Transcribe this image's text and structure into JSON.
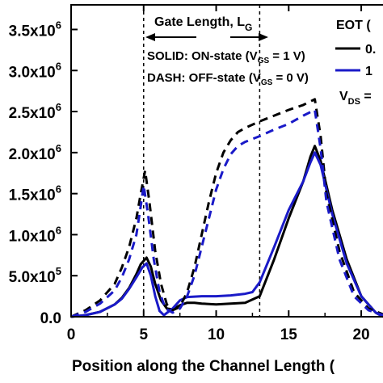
{
  "chart_data": {
    "type": "line",
    "xlabel": "Position along the Channel Length (",
    "ylabel": "",
    "xlim": [
      0,
      21.5
    ],
    "ylim": [
      0,
      3800000
    ],
    "x_ticks": [
      0,
      5,
      10,
      15,
      20
    ],
    "x_tick_labels": [
      "0",
      "5",
      "10",
      "15",
      "20"
    ],
    "y_ticks": [
      0,
      500000,
      1000000,
      1500000,
      2000000,
      2500000,
      3000000,
      3500000
    ],
    "y_tick_labels": [
      {
        "mantissa": "0.0",
        "exp": ""
      },
      {
        "mantissa": "5.0x10",
        "exp": "5"
      },
      {
        "mantissa": "1.0x10",
        "exp": "6"
      },
      {
        "mantissa": "1.5x10",
        "exp": "6"
      },
      {
        "mantissa": "2.0x10",
        "exp": "6"
      },
      {
        "mantissa": "2.5x10",
        "exp": "6"
      },
      {
        "mantissa": "3.0x10",
        "exp": "6"
      },
      {
        "mantissa": "3.5x10",
        "exp": "6"
      }
    ],
    "gate_lines_x": [
      5,
      13
    ],
    "annotations": {
      "gate_length": "Gate Length, L",
      "gate_length_sub": "G",
      "solid_a": "SOLID: ON-state (V",
      "solid_sub": "GS",
      "solid_b": " = 1 V)",
      "dash_a": "DASH: OFF-state (V",
      "dash_sub": "GS",
      "dash_b": " = 0 V)"
    },
    "legend": {
      "title": "EOT (",
      "entries": [
        "0.",
        "1"
      ],
      "vds_label": "V",
      "vds_sub": "DS",
      "vds_rest": " ="
    },
    "series": [
      {
        "color": "#000000",
        "style": "solid",
        "x": [
          0,
          1,
          2,
          3,
          3.5,
          4,
          4.5,
          4.8,
          5.2,
          5.5,
          5.8,
          6.2,
          6.6,
          7.0,
          7.5,
          8.0,
          8.5,
          9,
          10,
          11,
          12,
          13,
          14,
          15,
          16,
          16.5,
          16.8,
          17.2,
          18,
          19,
          20,
          21,
          21.5
        ],
        "y": [
          0,
          20000,
          60000,
          150000,
          230000,
          350000,
          520000,
          640000,
          720000,
          610000,
          400000,
          200000,
          100000,
          90000,
          140000,
          170000,
          170000,
          160000,
          150000,
          160000,
          170000,
          250000,
          700000,
          1200000,
          1650000,
          1950000,
          2080000,
          1900000,
          1300000,
          700000,
          250000,
          50000,
          0
        ]
      },
      {
        "color": "#1a1ac8",
        "style": "solid",
        "x": [
          0,
          1,
          2,
          3,
          3.5,
          4,
          4.5,
          4.9,
          5.2,
          5.5,
          5.8,
          6.1,
          6.4,
          7.0,
          7.5,
          8,
          9,
          10,
          11,
          12,
          12.5,
          13,
          14,
          15,
          16,
          16.5,
          16.8,
          17.2,
          18,
          19,
          20,
          21,
          21.5
        ],
        "y": [
          0,
          20000,
          60000,
          150000,
          220000,
          340000,
          480000,
          600000,
          650000,
          500000,
          250000,
          70000,
          20000,
          100000,
          200000,
          240000,
          250000,
          250000,
          260000,
          280000,
          300000,
          420000,
          850000,
          1300000,
          1650000,
          1880000,
          2000000,
          1850000,
          1250000,
          650000,
          250000,
          50000,
          0
        ]
      },
      {
        "color": "#000000",
        "style": "dash",
        "x": [
          0,
          1,
          2,
          3,
          3.5,
          4,
          4.5,
          4.8,
          5.1,
          5.4,
          5.8,
          6.2,
          6.6,
          7.0,
          7.5,
          8,
          8.5,
          9,
          9.5,
          10,
          10.5,
          11,
          11.5,
          12,
          13,
          14,
          15,
          16,
          16.8,
          17.2,
          17.6,
          18.5,
          19.5,
          20.5,
          21.5
        ],
        "y": [
          0,
          80000,
          200000,
          400000,
          600000,
          850000,
          1200000,
          1500000,
          1780000,
          1400000,
          800000,
          400000,
          150000,
          80000,
          120000,
          300000,
          600000,
          1000000,
          1400000,
          1750000,
          2000000,
          2150000,
          2250000,
          2300000,
          2380000,
          2450000,
          2520000,
          2580000,
          2650000,
          2200000,
          1500000,
          800000,
          300000,
          100000,
          30000
        ]
      },
      {
        "color": "#1a1ac8",
        "style": "dash",
        "x": [
          0,
          1,
          2,
          3,
          3.5,
          4,
          4.5,
          4.8,
          5.0,
          5.3,
          5.7,
          6.1,
          6.5,
          7.0,
          7.5,
          8,
          8.5,
          9,
          9.5,
          10,
          10.5,
          11,
          11.5,
          12,
          13,
          14,
          15,
          16,
          16.8,
          17.2,
          17.6,
          18.5,
          19.5,
          20.5,
          21.5
        ],
        "y": [
          0,
          60000,
          160000,
          320000,
          480000,
          700000,
          1000000,
          1350000,
          1600000,
          1250000,
          700000,
          300000,
          100000,
          50000,
          100000,
          250000,
          500000,
          850000,
          1200000,
          1550000,
          1800000,
          1980000,
          2080000,
          2130000,
          2200000,
          2280000,
          2350000,
          2450000,
          2520000,
          2050000,
          1400000,
          700000,
          250000,
          80000,
          20000
        ]
      }
    ]
  }
}
